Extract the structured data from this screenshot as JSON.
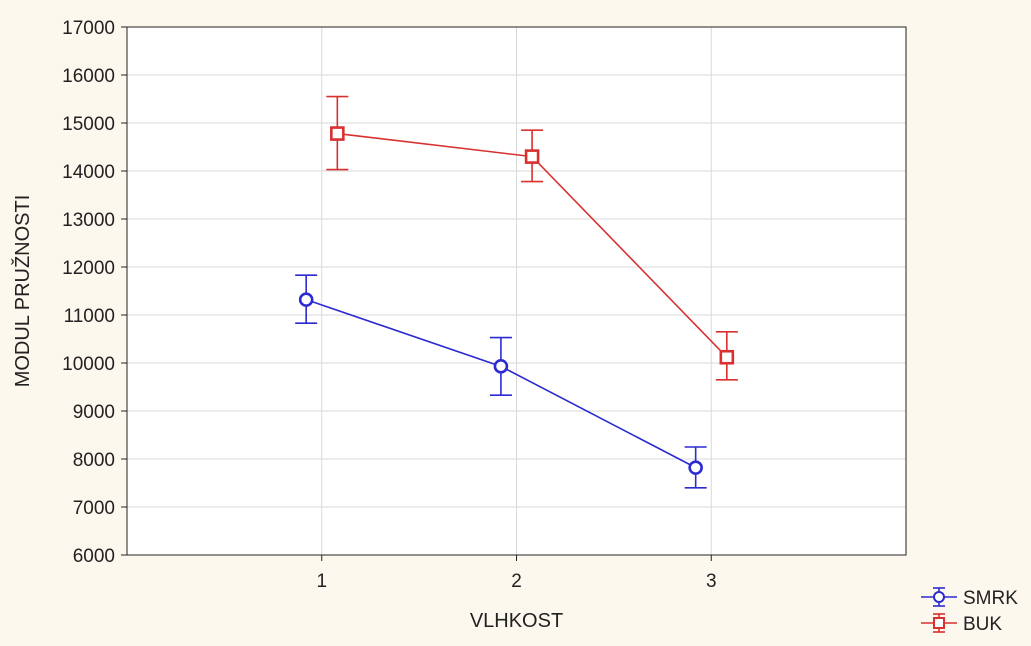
{
  "chart_data": {
    "type": "line",
    "title": "",
    "xlabel": "VLHKOST",
    "ylabel": "MODUL PRUŽNOSTI",
    "categories": [
      "1",
      "2",
      "3"
    ],
    "xlim": [
      0,
      4
    ],
    "ylim": [
      6000,
      17000
    ],
    "yticks": [
      6000,
      7000,
      8000,
      9000,
      10000,
      11000,
      12000,
      13000,
      14000,
      15000,
      16000,
      17000
    ],
    "grid": true,
    "legend_position": "bottom-right",
    "error_bars": true,
    "series": [
      {
        "name": "SMRK",
        "color": "#2b2bd0",
        "marker": "circle",
        "values": [
          11320,
          9930,
          7820
        ],
        "error_low": [
          10830,
          9330,
          7400
        ],
        "error_high": [
          11830,
          10530,
          8250
        ]
      },
      {
        "name": "BUK",
        "color": "#d93030",
        "marker": "square",
        "values": [
          14780,
          14300,
          10120
        ],
        "error_low": [
          14030,
          13780,
          9650
        ],
        "error_high": [
          15550,
          14850,
          10650
        ]
      }
    ]
  }
}
